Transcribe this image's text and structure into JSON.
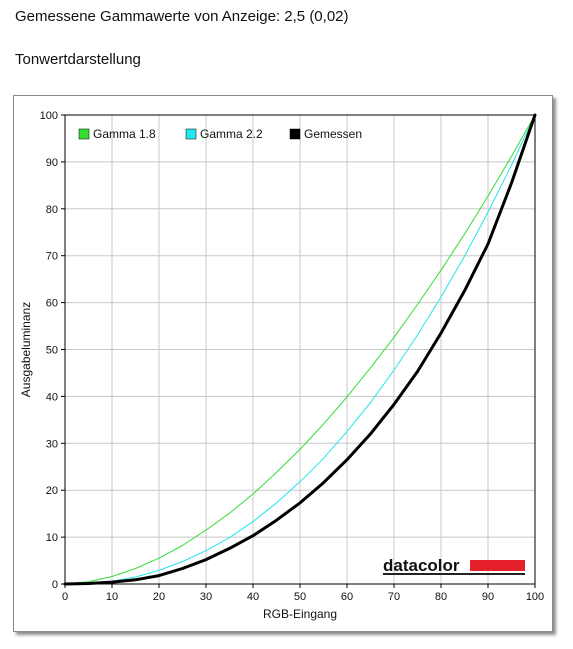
{
  "page": {
    "measured_gamma_text": "Gemessene Gammawerte von Anzeige: 2,5 (0,02)",
    "section_title": "Tonwertdarstellung"
  },
  "logo": {
    "text": "datacolor",
    "bar_color": "#e5202a"
  },
  "chart_data": {
    "type": "line",
    "xlabel": "RGB-Eingang",
    "ylabel": "Ausgabeluminanz",
    "xlim": [
      0,
      100
    ],
    "ylim": [
      0,
      100
    ],
    "x_ticks": [
      0,
      10,
      20,
      30,
      40,
      50,
      60,
      70,
      80,
      90,
      100
    ],
    "y_ticks": [
      0,
      10,
      20,
      30,
      40,
      50,
      60,
      70,
      80,
      90,
      100
    ],
    "grid": true,
    "legend_position": "top-left",
    "x": [
      0,
      5,
      10,
      15,
      20,
      25,
      30,
      35,
      40,
      45,
      50,
      55,
      60,
      65,
      70,
      75,
      80,
      85,
      90,
      95,
      100
    ],
    "series": [
      {
        "name": "Gamma 1.8",
        "color": "#33dd33",
        "line_width": 1,
        "values": [
          0,
          0.5,
          1.6,
          3.3,
          5.5,
          8.2,
          11.5,
          15.1,
          19.2,
          23.8,
          28.7,
          34.1,
          39.9,
          46.1,
          52.6,
          59.6,
          66.9,
          74.6,
          82.7,
          91.2,
          100
        ]
      },
      {
        "name": "Gamma 2.2",
        "color": "#22e5ee",
        "line_width": 1,
        "values": [
          0,
          0.1,
          0.6,
          1.5,
          2.9,
          4.8,
          7.1,
          9.9,
          13.3,
          17.3,
          21.8,
          26.8,
          32.5,
          38.7,
          45.6,
          53.1,
          61.2,
          69.9,
          79.3,
          89.3,
          100
        ]
      },
      {
        "name": "Gemessen",
        "color": "#000000",
        "line_width": 3,
        "values": [
          0,
          0.1,
          0.4,
          0.9,
          1.8,
          3.3,
          5.2,
          7.6,
          10.3,
          13.6,
          17.3,
          21.6,
          26.5,
          32.0,
          38.3,
          45.3,
          53.5,
          62.5,
          72.5,
          85.5,
          100
        ]
      }
    ]
  }
}
